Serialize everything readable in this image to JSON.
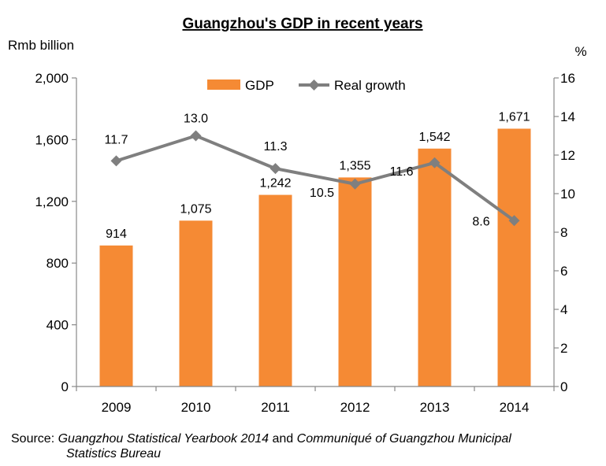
{
  "chart_data": {
    "type": "bar+line",
    "title": "Guangzhou's GDP in recent years",
    "categories": [
      "2009",
      "2010",
      "2011",
      "2012",
      "2013",
      "2014"
    ],
    "series": [
      {
        "name": "GDP",
        "type": "bar",
        "axis": "left",
        "values": [
          914,
          1075,
          1242,
          1355,
          1542,
          1671
        ],
        "value_labels": [
          "914",
          "1,075",
          "1,242",
          "1,355",
          "1,542",
          "1,671"
        ],
        "color": "#F58A34"
      },
      {
        "name": "Real growth",
        "type": "line",
        "axis": "right",
        "values": [
          11.7,
          13.0,
          11.3,
          10.5,
          11.6,
          8.6
        ],
        "value_labels": [
          "11.7",
          "13.0",
          "11.3",
          "10.5",
          "11.6",
          "8.6"
        ],
        "color": "#7F7F7F"
      }
    ],
    "y_left": {
      "label": "Rmb billion",
      "ylim": [
        0,
        2000
      ],
      "ticks": [
        0,
        400,
        800,
        1200,
        1600,
        2000
      ],
      "tick_labels": [
        "0",
        "400",
        "800",
        "1,200",
        "1,600",
        "2,000"
      ]
    },
    "y_right": {
      "label": "%",
      "ylim": [
        0,
        16
      ],
      "ticks": [
        0,
        2,
        4,
        6,
        8,
        10,
        12,
        14,
        16
      ],
      "tick_labels": [
        "0",
        "2",
        "4",
        "6",
        "8",
        "10",
        "12",
        "14",
        "16"
      ]
    },
    "legend_position": "top-center",
    "grid": false
  },
  "source": {
    "prefix": "Source: ",
    "ref1": "Guangzhou Statistical Yearbook 2014",
    "connector": " and ",
    "ref2_line1": "Communiqué of Guangzhou Municipal",
    "ref2_line2": "Statistics Bureau"
  }
}
